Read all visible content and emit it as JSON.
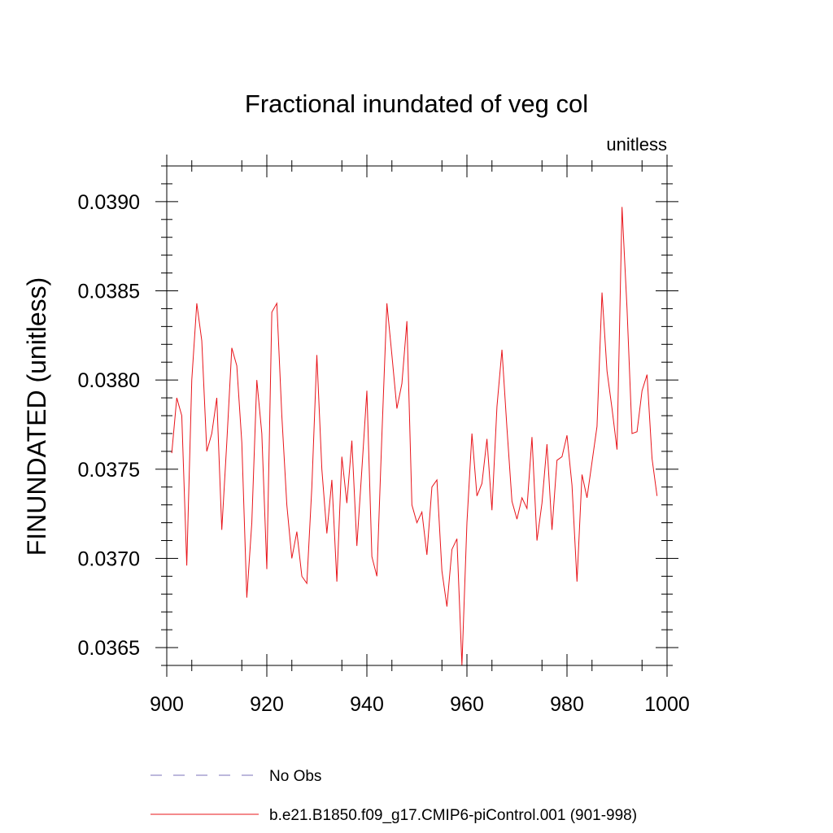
{
  "chart_data": {
    "type": "line",
    "title": "Fractional inundated of veg col",
    "units_label": "unitless",
    "ylabel": "FINUNDATED  (unitless)",
    "xlabel": "",
    "xlim": [
      900,
      1000
    ],
    "ylim": [
      0.0364,
      0.0392
    ],
    "x_ticks": [
      900,
      920,
      940,
      960,
      980,
      1000
    ],
    "x_tick_labels": [
      "900",
      "920",
      "940",
      "960",
      "980",
      "1000"
    ],
    "y_ticks": [
      0.0365,
      0.037,
      0.0375,
      0.038,
      0.0385,
      0.039
    ],
    "y_tick_labels": [
      "0.0365",
      "0.0370",
      "0.0375",
      "0.0380",
      "0.0385",
      "0.0390"
    ],
    "grid": false,
    "legend_position": "bottom",
    "series": [
      {
        "name": "No Obs",
        "color": "#7a70b8",
        "style": "dashed",
        "x": [],
        "values": []
      },
      {
        "name": "b.e21.B1850.f09_g17.CMIP6-piControl.001 (901-998)",
        "color": "#e8141a",
        "style": "solid",
        "x": [
          901,
          902,
          903,
          904,
          905,
          906,
          907,
          908,
          909,
          910,
          911,
          912,
          913,
          914,
          915,
          916,
          917,
          918,
          919,
          920,
          921,
          922,
          923,
          924,
          925,
          926,
          927,
          928,
          929,
          930,
          931,
          932,
          933,
          934,
          935,
          936,
          937,
          938,
          939,
          940,
          941,
          942,
          943,
          944,
          945,
          946,
          947,
          948,
          949,
          950,
          951,
          952,
          953,
          954,
          955,
          956,
          957,
          958,
          959,
          960,
          961,
          962,
          963,
          964,
          965,
          966,
          967,
          968,
          969,
          970,
          971,
          972,
          973,
          974,
          975,
          976,
          977,
          978,
          979,
          980,
          981,
          982,
          983,
          984,
          985,
          986,
          987,
          988,
          989,
          990,
          991,
          992,
          993,
          994,
          995,
          996,
          997,
          998
        ],
        "values": [
          0.03759,
          0.0379,
          0.0378,
          0.03696,
          0.038,
          0.03843,
          0.03822,
          0.0376,
          0.0377,
          0.0379,
          0.03716,
          0.03765,
          0.03818,
          0.03808,
          0.03765,
          0.03678,
          0.0372,
          0.038,
          0.0377,
          0.03694,
          0.03838,
          0.03843,
          0.0378,
          0.0373,
          0.037,
          0.03715,
          0.0369,
          0.03686,
          0.0374,
          0.03814,
          0.0375,
          0.03714,
          0.03744,
          0.03687,
          0.03757,
          0.03731,
          0.03766,
          0.03707,
          0.0375,
          0.03794,
          0.03701,
          0.0369,
          0.03769,
          0.03843,
          0.03814,
          0.03784,
          0.03798,
          0.03833,
          0.0373,
          0.0372,
          0.03726,
          0.03702,
          0.0374,
          0.03744,
          0.03693,
          0.03673,
          0.03705,
          0.03711,
          0.0364,
          0.0372,
          0.0377,
          0.03735,
          0.03742,
          0.03767,
          0.03727,
          0.03785,
          0.03817,
          0.03773,
          0.03732,
          0.03722,
          0.03734,
          0.03728,
          0.03768,
          0.0371,
          0.03731,
          0.03764,
          0.03716,
          0.03755,
          0.03757,
          0.03769,
          0.03741,
          0.03687,
          0.03747,
          0.03734,
          0.03754,
          0.03774,
          0.03849,
          0.03805,
          0.03784,
          0.03761,
          0.03897,
          0.0384,
          0.0377,
          0.03771,
          0.03794,
          0.03803,
          0.03756,
          0.03735
        ]
      }
    ]
  }
}
